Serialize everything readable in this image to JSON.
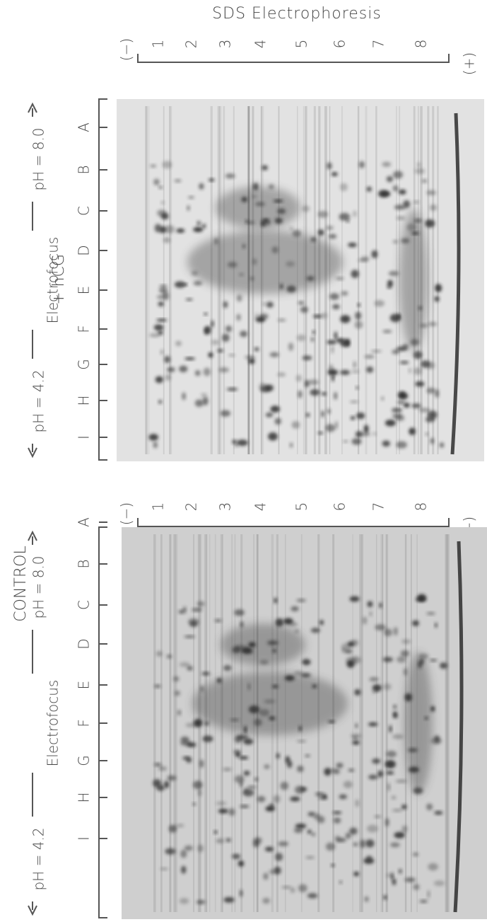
{
  "header": {
    "title": "SDS Electrophoresis"
  },
  "panels": [
    {
      "label": "+ hCG",
      "axis_label": "Electrofocus",
      "ph_low": "pH = 4.2",
      "ph_high": "pH = 8.0",
      "lanes": [
        "A",
        "B",
        "C",
        "D",
        "E",
        "F",
        "G",
        "H",
        "I"
      ],
      "sds_marks": [
        "1",
        "2",
        "3",
        "4",
        "5",
        "6",
        "7",
        "8"
      ],
      "minus": "(−)",
      "plus": "(+)"
    },
    {
      "label": "CONTROL",
      "axis_label": "Electrofocus",
      "ph_low": "pH = 4.2",
      "ph_high": "pH = 8.0",
      "lanes": [
        "A",
        "B",
        "C",
        "D",
        "E",
        "F",
        "G",
        "H",
        "I"
      ],
      "sds_marks": [
        "1",
        "2",
        "3",
        "4",
        "5",
        "6",
        "7",
        "8"
      ],
      "minus": "(−)",
      "plus": "(+)"
    }
  ]
}
